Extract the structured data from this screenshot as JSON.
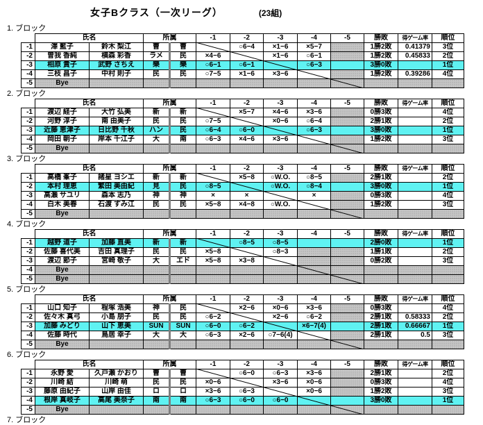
{
  "title": "女子Bクラス（一次リーグ）",
  "group_count": "(23組)",
  "bye_label": "Bye",
  "next_block_label": "7. ブロック",
  "colors": {
    "highlight_cyan": "#5ff2f2",
    "bye_gray": "#c6c6c6",
    "grid": "#000000"
  },
  "headers": {
    "name": "氏名",
    "affiliation": "所属",
    "matches": [
      "-1",
      "-2",
      "-3",
      "-4",
      "-5"
    ],
    "record": "勝敗",
    "rate": "得ゲーム率",
    "rank": "順位"
  },
  "blocks": [
    {
      "label": "1. ブロック",
      "rows": [
        {
          "label": "-1",
          "bye": false,
          "win": false,
          "self": 0,
          "names": [
            "澤 藍子",
            "鈴木 梨江"
          ],
          "affs": [
            "曹",
            "曹"
          ],
          "results": [
            "",
            "○6−4",
            "×1−6",
            "×5−7",
            ""
          ],
          "record": "1勝2敗",
          "rate": "0.41379",
          "rank": "3位"
        },
        {
          "label": "-2",
          "bye": false,
          "win": false,
          "self": 1,
          "names": [
            "曽我 香純",
            "横森 彩香"
          ],
          "affs": [
            "ラメ",
            "民"
          ],
          "results": [
            "×4−6",
            "",
            "×1−6",
            "○6−1",
            ""
          ],
          "record": "1勝2敗",
          "rate": "0.45833",
          "rank": "2位"
        },
        {
          "label": "-3",
          "bye": false,
          "win": true,
          "self": 2,
          "names": [
            "相原 貴子",
            "武野 さちえ"
          ],
          "affs": [
            "樂",
            "樂"
          ],
          "results": [
            "○6−1",
            "○6−1",
            "",
            "○6−3",
            ""
          ],
          "record": "3勝0敗",
          "rate": "",
          "rank": "1位"
        },
        {
          "label": "-4",
          "bye": false,
          "win": false,
          "self": 3,
          "names": [
            "三枝 昌子",
            "中村 則子"
          ],
          "affs": [
            "民",
            "民"
          ],
          "results": [
            "○7−5",
            "×1−6",
            "×3−6",
            "",
            ""
          ],
          "record": "1勝2敗",
          "rate": "0.39286",
          "rank": "4位"
        },
        {
          "label": "-5",
          "bye": true,
          "win": false,
          "self": 4,
          "names": [
            "",
            ""
          ],
          "affs": [
            "",
            ""
          ],
          "results": [
            "",
            "",
            "",
            "",
            ""
          ],
          "record": "",
          "rate": "",
          "rank": ""
        }
      ]
    },
    {
      "label": "2. ブロック",
      "rows": [
        {
          "label": "-1",
          "bye": false,
          "win": false,
          "self": 0,
          "names": [
            "渡辺 経子",
            "大竹 弘美"
          ],
          "affs": [
            "新",
            "新"
          ],
          "results": [
            "",
            "×5−7",
            "×4−6",
            "×3−6",
            ""
          ],
          "record": "0勝3敗",
          "rate": "",
          "rank": "4位"
        },
        {
          "label": "-2",
          "bye": false,
          "win": false,
          "self": 1,
          "names": [
            "河野 淳子",
            "南 由美子"
          ],
          "affs": [
            "民",
            "民"
          ],
          "results": [
            "○7−5",
            "",
            "×0−6",
            "○6−4",
            ""
          ],
          "record": "2勝1敗",
          "rate": "",
          "rank": "2位"
        },
        {
          "label": "-3",
          "bye": false,
          "win": true,
          "self": 2,
          "names": [
            "近藤 恵津子",
            "日比野 千秋"
          ],
          "affs": [
            "ハン",
            "民"
          ],
          "results": [
            "○6−4",
            "○6−0",
            "",
            "○6−3",
            ""
          ],
          "record": "3勝0敗",
          "rate": "",
          "rank": "1位"
        },
        {
          "label": "-4",
          "bye": false,
          "win": false,
          "self": 3,
          "names": [
            "岡田 朝子",
            "岸本 千江子"
          ],
          "affs": [
            "大",
            "南"
          ],
          "results": [
            "○6−3",
            "×4−6",
            "×3−6",
            "",
            ""
          ],
          "record": "1勝2敗",
          "rate": "",
          "rank": "3位"
        },
        {
          "label": "-5",
          "bye": true,
          "win": false,
          "self": 4,
          "names": [
            "",
            ""
          ],
          "affs": [
            "",
            ""
          ],
          "results": [
            "",
            "",
            "",
            "",
            ""
          ],
          "record": "",
          "rate": "",
          "rank": ""
        }
      ]
    },
    {
      "label": "3. ブロック",
      "rows": [
        {
          "label": "-1",
          "bye": false,
          "win": false,
          "self": 0,
          "names": [
            "高橋 峯子",
            "諸星 ヨシエ"
          ],
          "affs": [
            "新",
            "新"
          ],
          "results": [
            "",
            "×5−8",
            "○W.O.",
            "○8−5",
            ""
          ],
          "record": "2勝1敗",
          "rate": "",
          "rank": "2位"
        },
        {
          "label": "-2",
          "bye": false,
          "win": true,
          "self": 1,
          "names": [
            "本村 理恵",
            "繁田 美由紀"
          ],
          "affs": [
            "見",
            "民"
          ],
          "results": [
            "○8−5",
            "",
            "○W.O.",
            "○8−4",
            ""
          ],
          "record": "3勝0敗",
          "rate": "",
          "rank": "1位"
        },
        {
          "label": "-3",
          "bye": false,
          "win": false,
          "self": 2,
          "names": [
            "高瀬 サユリ",
            "森本 志乃"
          ],
          "affs": [
            "神",
            "神"
          ],
          "results": [
            "×",
            "×",
            "",
            "×",
            ""
          ],
          "record": "0勝3敗",
          "rate": "",
          "rank": "4位"
        },
        {
          "label": "-4",
          "bye": false,
          "win": false,
          "self": 3,
          "names": [
            "白木 美春",
            "石渡 すみ江"
          ],
          "affs": [
            "民",
            "民"
          ],
          "results": [
            "×5−8",
            "×4−8",
            "○W.O.",
            "",
            ""
          ],
          "record": "1勝2敗",
          "rate": "",
          "rank": "3位"
        },
        {
          "label": "-5",
          "bye": true,
          "win": false,
          "self": 4,
          "names": [
            "",
            ""
          ],
          "affs": [
            "",
            ""
          ],
          "results": [
            "",
            "",
            "",
            "",
            ""
          ],
          "record": "",
          "rate": "",
          "rank": ""
        }
      ]
    },
    {
      "label": "4. ブロック",
      "rows": [
        {
          "label": "-1",
          "bye": false,
          "win": true,
          "self": 0,
          "names": [
            "越野 道子",
            "加藤 直美"
          ],
          "affs": [
            "新",
            "新"
          ],
          "results": [
            "",
            "○8−5",
            "○8−5",
            "",
            ""
          ],
          "record": "2勝0敗",
          "rate": "",
          "rank": "1位"
        },
        {
          "label": "-2",
          "bye": false,
          "win": false,
          "self": 1,
          "names": [
            "佐藤 喜代美",
            "吉田 真理子"
          ],
          "affs": [
            "民",
            "民"
          ],
          "results": [
            "×5−8",
            "",
            "○8−3",
            "",
            ""
          ],
          "record": "1勝1敗",
          "rate": "",
          "rank": "2位"
        },
        {
          "label": "-3",
          "bye": false,
          "win": false,
          "self": 2,
          "names": [
            "渡辺 節子",
            "宮崎 敬子"
          ],
          "affs": [
            "大",
            "エド"
          ],
          "results": [
            "×5−8",
            "×3−8",
            "",
            "",
            ""
          ],
          "record": "0勝2敗",
          "rate": "",
          "rank": "3位"
        },
        {
          "label": "-4",
          "bye": true,
          "win": false,
          "self": 3,
          "names": [
            "",
            ""
          ],
          "affs": [
            "",
            ""
          ],
          "results": [
            "",
            "",
            "",
            "",
            ""
          ],
          "record": "",
          "rate": "",
          "rank": ""
        },
        {
          "label": "-5",
          "bye": true,
          "win": false,
          "self": 4,
          "names": [
            "",
            ""
          ],
          "affs": [
            "",
            ""
          ],
          "results": [
            "",
            "",
            "",
            "",
            ""
          ],
          "record": "",
          "rate": "",
          "rank": ""
        }
      ]
    },
    {
      "label": "5. ブロック",
      "rows": [
        {
          "label": "-1",
          "bye": false,
          "win": false,
          "self": 0,
          "names": [
            "山口 知子",
            "程塚 浩美"
          ],
          "affs": [
            "神",
            "民"
          ],
          "results": [
            "",
            "×2−6",
            "×0−6",
            "×3−6",
            ""
          ],
          "record": "0勝3敗",
          "rate": "",
          "rank": "4位"
        },
        {
          "label": "-2",
          "bye": false,
          "win": false,
          "self": 1,
          "names": [
            "佐々木 真弓",
            "小島 朋子"
          ],
          "affs": [
            "民",
            "民"
          ],
          "results": [
            "○6−2",
            "",
            "×2−6",
            "○6−2",
            ""
          ],
          "record": "2勝1敗",
          "rate": "0.58333",
          "rank": "2位"
        },
        {
          "label": "-3",
          "bye": false,
          "win": true,
          "self": 2,
          "names": [
            "加藤 みどり",
            "山下 恵美"
          ],
          "affs": [
            "SUN",
            "SUN"
          ],
          "results": [
            "○6−0",
            "○6−2",
            "",
            "×6−7(4)",
            ""
          ],
          "record": "2勝1敗",
          "rate": "0.66667",
          "rank": "1位"
        },
        {
          "label": "-4",
          "bye": false,
          "win": false,
          "self": 3,
          "names": [
            "佐藤 時代",
            "鳥居 幸子"
          ],
          "affs": [
            "大",
            "大"
          ],
          "results": [
            "○6−3",
            "×2−6",
            "○7−6(4)",
            "",
            ""
          ],
          "record": "2勝1敗",
          "rate": "0.5",
          "rank": "3位"
        },
        {
          "label": "-5",
          "bye": true,
          "win": false,
          "self": 4,
          "names": [
            "",
            ""
          ],
          "affs": [
            "",
            ""
          ],
          "results": [
            "",
            "",
            "",
            "",
            ""
          ],
          "record": "",
          "rate": "",
          "rank": ""
        }
      ]
    },
    {
      "label": "6. ブロック",
      "rows": [
        {
          "label": "-1",
          "bye": false,
          "win": false,
          "self": 0,
          "names": [
            "永野 愛",
            "久戸瀬 かおり"
          ],
          "affs": [
            "曹",
            "曹"
          ],
          "results": [
            "",
            "○6−0",
            "○6−3",
            "×3−6",
            ""
          ],
          "record": "2勝1敗",
          "rate": "",
          "rank": "2位"
        },
        {
          "label": "-2",
          "bye": false,
          "win": false,
          "self": 1,
          "names": [
            "川崎 結",
            "川崎 萌"
          ],
          "affs": [
            "民",
            "民"
          ],
          "results": [
            "×0−6",
            "",
            "×3−6",
            "×0−6",
            ""
          ],
          "record": "0勝3敗",
          "rate": "",
          "rank": "4位"
        },
        {
          "label": "-3",
          "bye": false,
          "win": false,
          "self": 2,
          "names": [
            "藤原 由紀子",
            "山岸 由佳"
          ],
          "affs": [
            "ロ",
            "ロ"
          ],
          "results": [
            "×3−6",
            "○6−3",
            "",
            "×0−6",
            ""
          ],
          "record": "1勝2敗",
          "rate": "",
          "rank": "3位"
        },
        {
          "label": "-4",
          "bye": false,
          "win": true,
          "self": 3,
          "names": [
            "根岸 真岐子",
            "高尾 美奈子"
          ],
          "affs": [
            "南",
            "南"
          ],
          "results": [
            "○6−3",
            "○6−0",
            "○6−0",
            "",
            ""
          ],
          "record": "3勝0敗",
          "rate": "",
          "rank": "1位"
        },
        {
          "label": "-5",
          "bye": true,
          "win": false,
          "self": 4,
          "names": [
            "",
            ""
          ],
          "affs": [
            "",
            ""
          ],
          "results": [
            "",
            "",
            "",
            "",
            ""
          ],
          "record": "",
          "rate": "",
          "rank": ""
        }
      ]
    }
  ]
}
